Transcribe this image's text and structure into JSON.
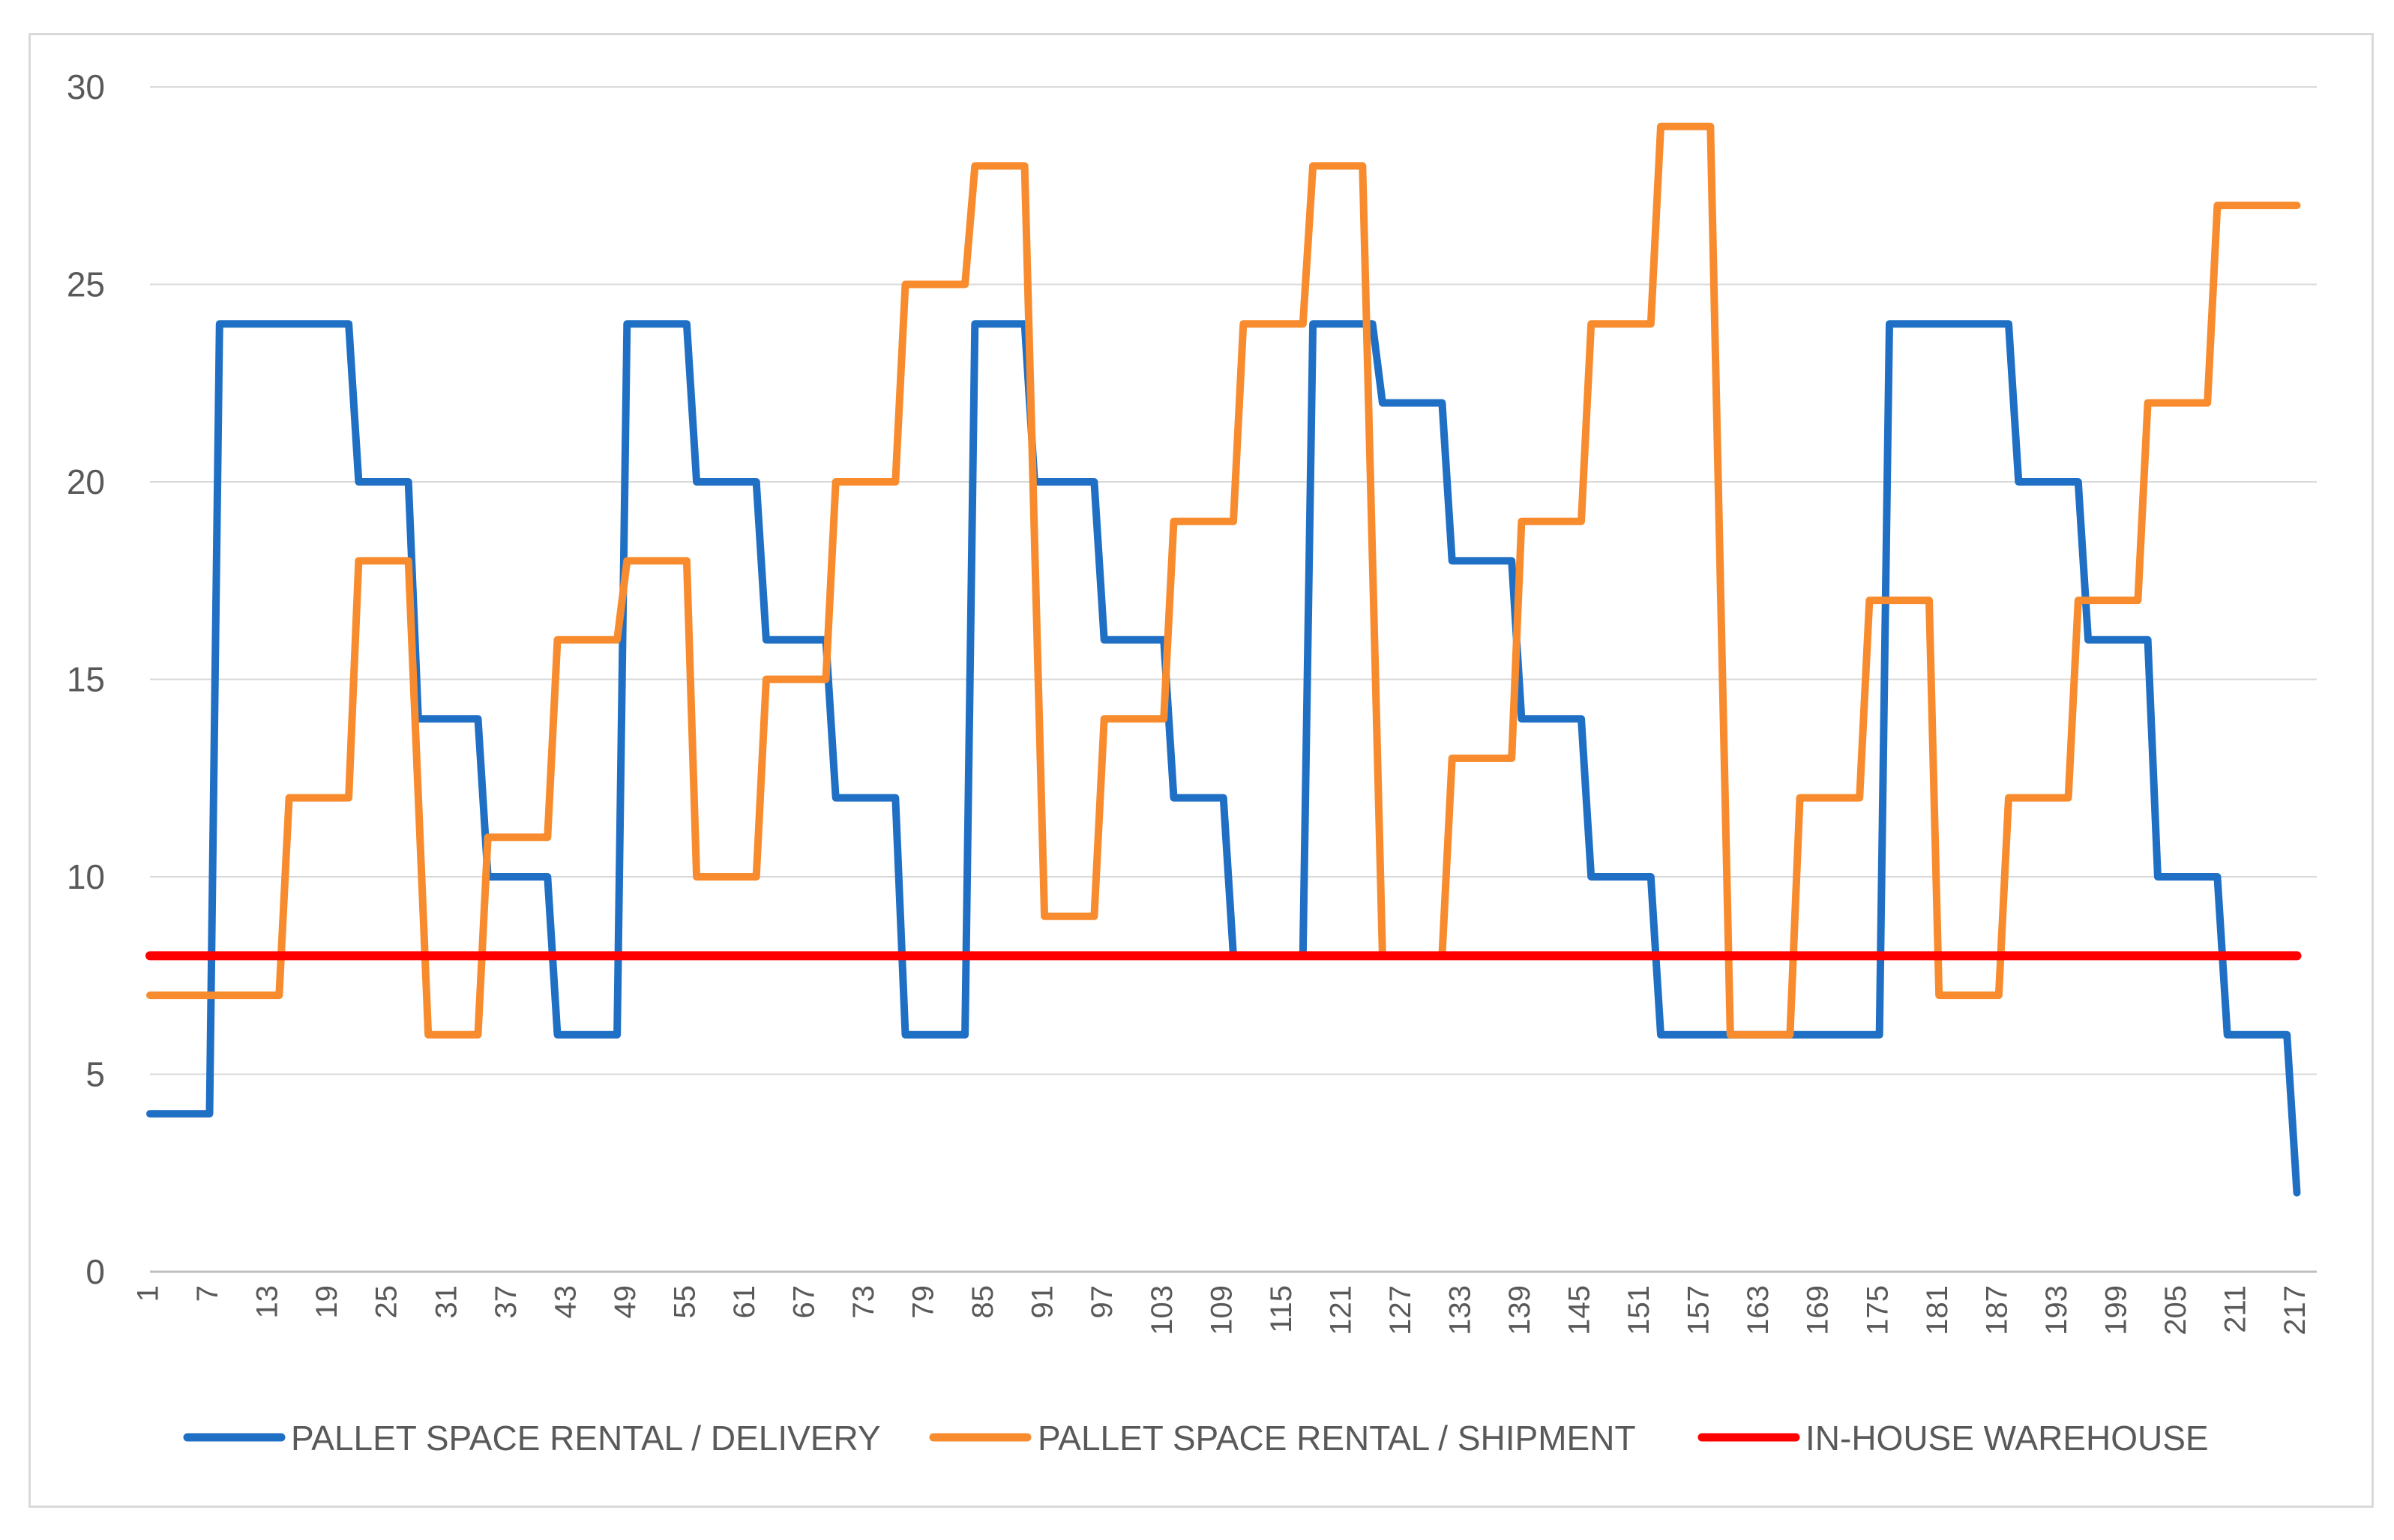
{
  "chart_data": {
    "type": "line",
    "title": "",
    "xlabel": "",
    "ylabel": "",
    "ylim": [
      0,
      30
    ],
    "yticks": [
      0,
      5,
      10,
      15,
      20,
      25,
      30
    ],
    "xlim": [
      1,
      219
    ],
    "xtick_labels": [
      "1",
      "7",
      "13",
      "19",
      "25",
      "31",
      "37",
      "43",
      "49",
      "55",
      "61",
      "67",
      "73",
      "79",
      "85",
      "91",
      "97",
      "103",
      "109",
      "115",
      "121",
      "127",
      "133",
      "139",
      "145",
      "151",
      "157",
      "163",
      "169",
      "175",
      "181",
      "187",
      "193",
      "199",
      "205",
      "211",
      "217"
    ],
    "grid": true,
    "legend_position": "bottom",
    "series": [
      {
        "name": "PALLET SPACE RENTAL / DELIVERY",
        "color": "#1f6fc5",
        "step_points": [
          [
            1,
            4
          ],
          [
            7,
            4
          ],
          [
            8,
            24
          ],
          [
            21,
            24
          ],
          [
            22,
            20
          ],
          [
            27,
            20
          ],
          [
            28,
            14
          ],
          [
            34,
            14
          ],
          [
            35,
            10
          ],
          [
            41,
            10
          ],
          [
            42,
            6
          ],
          [
            48,
            6
          ],
          [
            49,
            24
          ],
          [
            55,
            24
          ],
          [
            56,
            20
          ],
          [
            62,
            20
          ],
          [
            63,
            16
          ],
          [
            69,
            16
          ],
          [
            70,
            12
          ],
          [
            76,
            12
          ],
          [
            77,
            6
          ],
          [
            83,
            6
          ],
          [
            84,
            24
          ],
          [
            89,
            24
          ],
          [
            90,
            20
          ],
          [
            96,
            20
          ],
          [
            97,
            16
          ],
          [
            103,
            16
          ],
          [
            104,
            12
          ],
          [
            109,
            12
          ],
          [
            110,
            8
          ],
          [
            117,
            8
          ],
          [
            118,
            24
          ],
          [
            124,
            24
          ],
          [
            125,
            22
          ],
          [
            131,
            22
          ],
          [
            132,
            18
          ],
          [
            138,
            18
          ],
          [
            139,
            14
          ],
          [
            145,
            14
          ],
          [
            146,
            10
          ],
          [
            152,
            10
          ],
          [
            153,
            6
          ],
          [
            175,
            6
          ],
          [
            176,
            24
          ],
          [
            188,
            24
          ],
          [
            189,
            20
          ],
          [
            195,
            20
          ],
          [
            196,
            16
          ],
          [
            202,
            16
          ],
          [
            203,
            10
          ],
          [
            209,
            10
          ],
          [
            210,
            6
          ],
          [
            216,
            6
          ],
          [
            217,
            2
          ]
        ]
      },
      {
        "name": "PALLET SPACE RENTAL / SHIPMENT",
        "color": "#f78b2d",
        "step_points": [
          [
            1,
            7
          ],
          [
            14,
            7
          ],
          [
            15,
            12
          ],
          [
            21,
            12
          ],
          [
            22,
            18
          ],
          [
            27,
            18
          ],
          [
            29,
            6
          ],
          [
            34,
            6
          ],
          [
            35,
            11
          ],
          [
            41,
            11
          ],
          [
            42,
            16
          ],
          [
            48,
            16
          ],
          [
            49,
            18
          ],
          [
            55,
            18
          ],
          [
            56,
            10
          ],
          [
            62,
            10
          ],
          [
            63,
            15
          ],
          [
            69,
            15
          ],
          [
            70,
            20
          ],
          [
            76,
            20
          ],
          [
            77,
            25
          ],
          [
            83,
            25
          ],
          [
            84,
            28
          ],
          [
            89,
            28
          ],
          [
            91,
            9
          ],
          [
            96,
            9
          ],
          [
            97,
            14
          ],
          [
            103,
            14
          ],
          [
            104,
            19
          ],
          [
            110,
            19
          ],
          [
            111,
            24
          ],
          [
            117,
            24
          ],
          [
            118,
            28
          ],
          [
            123,
            28
          ],
          [
            125,
            8
          ],
          [
            131,
            8
          ],
          [
            132,
            13
          ],
          [
            138,
            13
          ],
          [
            139,
            19
          ],
          [
            145,
            19
          ],
          [
            146,
            24
          ],
          [
            152,
            24
          ],
          [
            153,
            29
          ],
          [
            158,
            29
          ],
          [
            160,
            6
          ],
          [
            166,
            6
          ],
          [
            167,
            12
          ],
          [
            173,
            12
          ],
          [
            174,
            17
          ],
          [
            180,
            17
          ],
          [
            181,
            7
          ],
          [
            187,
            7
          ],
          [
            188,
            12
          ],
          [
            194,
            12
          ],
          [
            195,
            17
          ],
          [
            201,
            17
          ],
          [
            202,
            22
          ],
          [
            208,
            22
          ],
          [
            209,
            27
          ],
          [
            217,
            27
          ]
        ]
      },
      {
        "name": "IN-HOUSE WAREHOUSE",
        "color": "#ff0000",
        "step_points": [
          [
            1,
            8
          ],
          [
            217,
            8
          ]
        ]
      }
    ]
  }
}
